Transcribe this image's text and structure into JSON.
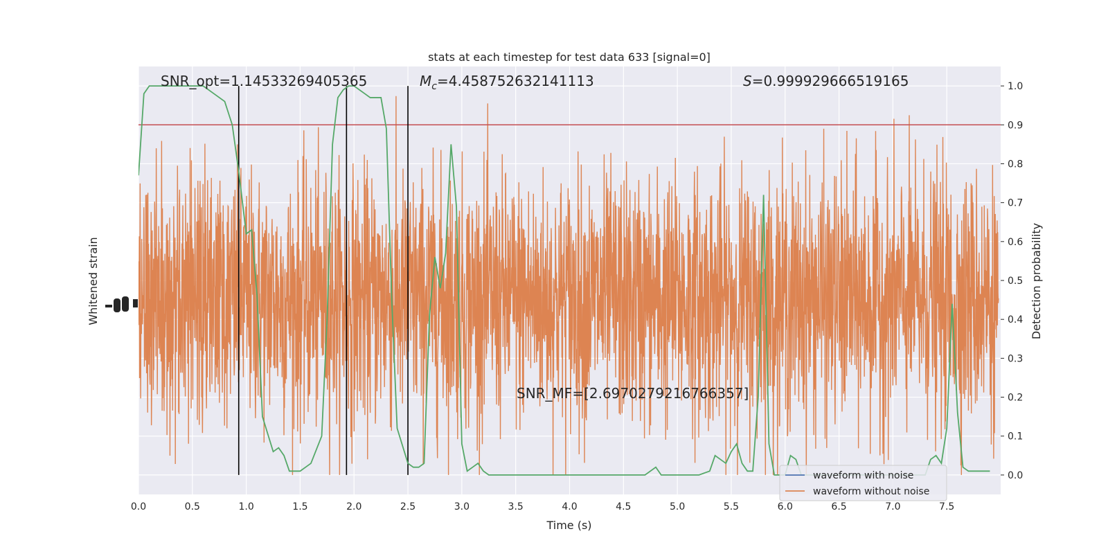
{
  "chart_data": {
    "type": "line",
    "title": "stats at each timestep for test data 633 [signal=0]",
    "xlabel": "Time (s)",
    "ylabel_left": "Whitened strain",
    "ylabel_right": "Detection probability",
    "xlim": [
      0.0,
      8.0
    ],
    "ylim_right": [
      -0.05,
      1.05
    ],
    "x_ticks": [
      0.0,
      0.5,
      1.0,
      1.5,
      2.0,
      2.5,
      3.0,
      3.5,
      4.0,
      4.5,
      5.0,
      5.5,
      6.0,
      6.5,
      7.0,
      7.5
    ],
    "x_tick_labels": [
      "0.0",
      "0.5",
      "1.0",
      "1.5",
      "2.0",
      "2.5",
      "3.0",
      "3.5",
      "4.0",
      "4.5",
      "5.0",
      "5.5",
      "6.0",
      "6.5",
      "7.0",
      "7.5"
    ],
    "y_ticks_right": [
      0.0,
      0.1,
      0.2,
      0.3,
      0.4,
      0.5,
      0.6,
      0.7,
      0.8,
      0.9,
      1.0
    ],
    "y_tick_labels_right": [
      "0.0",
      "0.1",
      "0.2",
      "0.3",
      "0.4",
      "0.5",
      "0.6",
      "0.7",
      "0.8",
      "0.9",
      "1.0"
    ],
    "grid": true,
    "legend_position": "bottom-right",
    "annotations": {
      "snr_opt": "SNR_opt=1.14533269405365",
      "mc_symbol": "M",
      "mc_sub": "c",
      "mc_value": "=4.458752632141113",
      "s_symbol": "S",
      "s_value": "=0.999929666519165",
      "snr_mf": "SNR_MF=[2.6970279216766357]"
    },
    "threshold": 0.9,
    "vertical_lines_x": [
      0.93,
      1.93,
      2.5
    ],
    "series": [
      {
        "name": "waveform with noise",
        "color": "#4c72b0",
        "description_kind": "strain"
      },
      {
        "name": "waveform without noise",
        "color": "#dd8452",
        "description_kind": "strain"
      },
      {
        "color": "#55a868",
        "x": [
          0.0,
          0.05,
          0.1,
          0.2,
          0.3,
          0.4,
          0.5,
          0.6,
          0.7,
          0.8,
          0.87,
          0.93,
          1.0,
          1.05,
          1.1,
          1.15,
          1.25,
          1.3,
          1.35,
          1.4,
          1.45,
          1.5,
          1.55,
          1.6,
          1.7,
          1.75,
          1.8,
          1.85,
          1.9,
          1.95,
          2.0,
          2.05,
          2.1,
          2.15,
          2.25,
          2.3,
          2.35,
          2.4,
          2.5,
          2.55,
          2.6,
          2.65,
          2.7,
          2.75,
          2.8,
          2.85,
          2.9,
          2.95,
          3.0,
          3.05,
          3.1,
          3.15,
          3.2,
          3.25,
          3.3,
          3.35,
          3.4,
          3.45,
          3.5,
          3.6,
          3.65,
          3.75,
          3.85,
          4.0,
          4.2,
          4.4,
          4.5,
          4.6,
          4.7,
          4.8,
          4.85,
          4.9,
          5.0,
          5.1,
          5.2,
          5.3,
          5.35,
          5.4,
          5.45,
          5.5,
          5.55,
          5.6,
          5.65,
          5.7,
          5.75,
          5.8,
          5.85,
          5.9,
          5.95,
          6.0,
          6.05,
          6.1,
          6.15,
          6.2,
          6.25,
          6.3,
          6.35,
          6.4,
          6.5,
          6.6,
          6.7,
          6.8,
          6.9,
          7.0,
          7.1,
          7.2,
          7.3,
          7.35,
          7.4,
          7.45,
          7.5,
          7.55,
          7.6,
          7.65,
          7.7,
          7.75,
          7.8,
          7.85,
          7.9
        ],
        "values": [
          0.77,
          0.98,
          1.0,
          1.0,
          1.0,
          1.0,
          1.0,
          1.0,
          0.98,
          0.96,
          0.9,
          0.78,
          0.62,
          0.63,
          0.46,
          0.15,
          0.06,
          0.07,
          0.05,
          0.01,
          0.01,
          0.01,
          0.02,
          0.03,
          0.1,
          0.4,
          0.85,
          0.97,
          0.99,
          1.0,
          1.0,
          0.99,
          0.98,
          0.97,
          0.97,
          0.89,
          0.45,
          0.12,
          0.03,
          0.02,
          0.02,
          0.03,
          0.41,
          0.56,
          0.48,
          0.57,
          0.85,
          0.69,
          0.08,
          0.01,
          0.02,
          0.03,
          0.01,
          0.0,
          0.0,
          0.0,
          0.0,
          0.0,
          0.0,
          0.0,
          0.0,
          0.0,
          0.0,
          0.0,
          0.0,
          0.0,
          0.0,
          0.0,
          0.0,
          0.02,
          0.0,
          0.0,
          0.0,
          0.0,
          0.0,
          0.01,
          0.05,
          0.04,
          0.03,
          0.06,
          0.08,
          0.03,
          0.01,
          0.01,
          0.2,
          0.72,
          0.08,
          0.0,
          0.0,
          0.0,
          0.05,
          0.04,
          0.0,
          0.0,
          0.0,
          0.0,
          0.0,
          0.0,
          0.0,
          0.0,
          0.0,
          0.0,
          0.0,
          0.0,
          0.0,
          0.0,
          0.0,
          0.04,
          0.05,
          0.03,
          0.12,
          0.44,
          0.16,
          0.02,
          0.01,
          0.01,
          0.01,
          0.01,
          0.01
        ]
      }
    ]
  }
}
